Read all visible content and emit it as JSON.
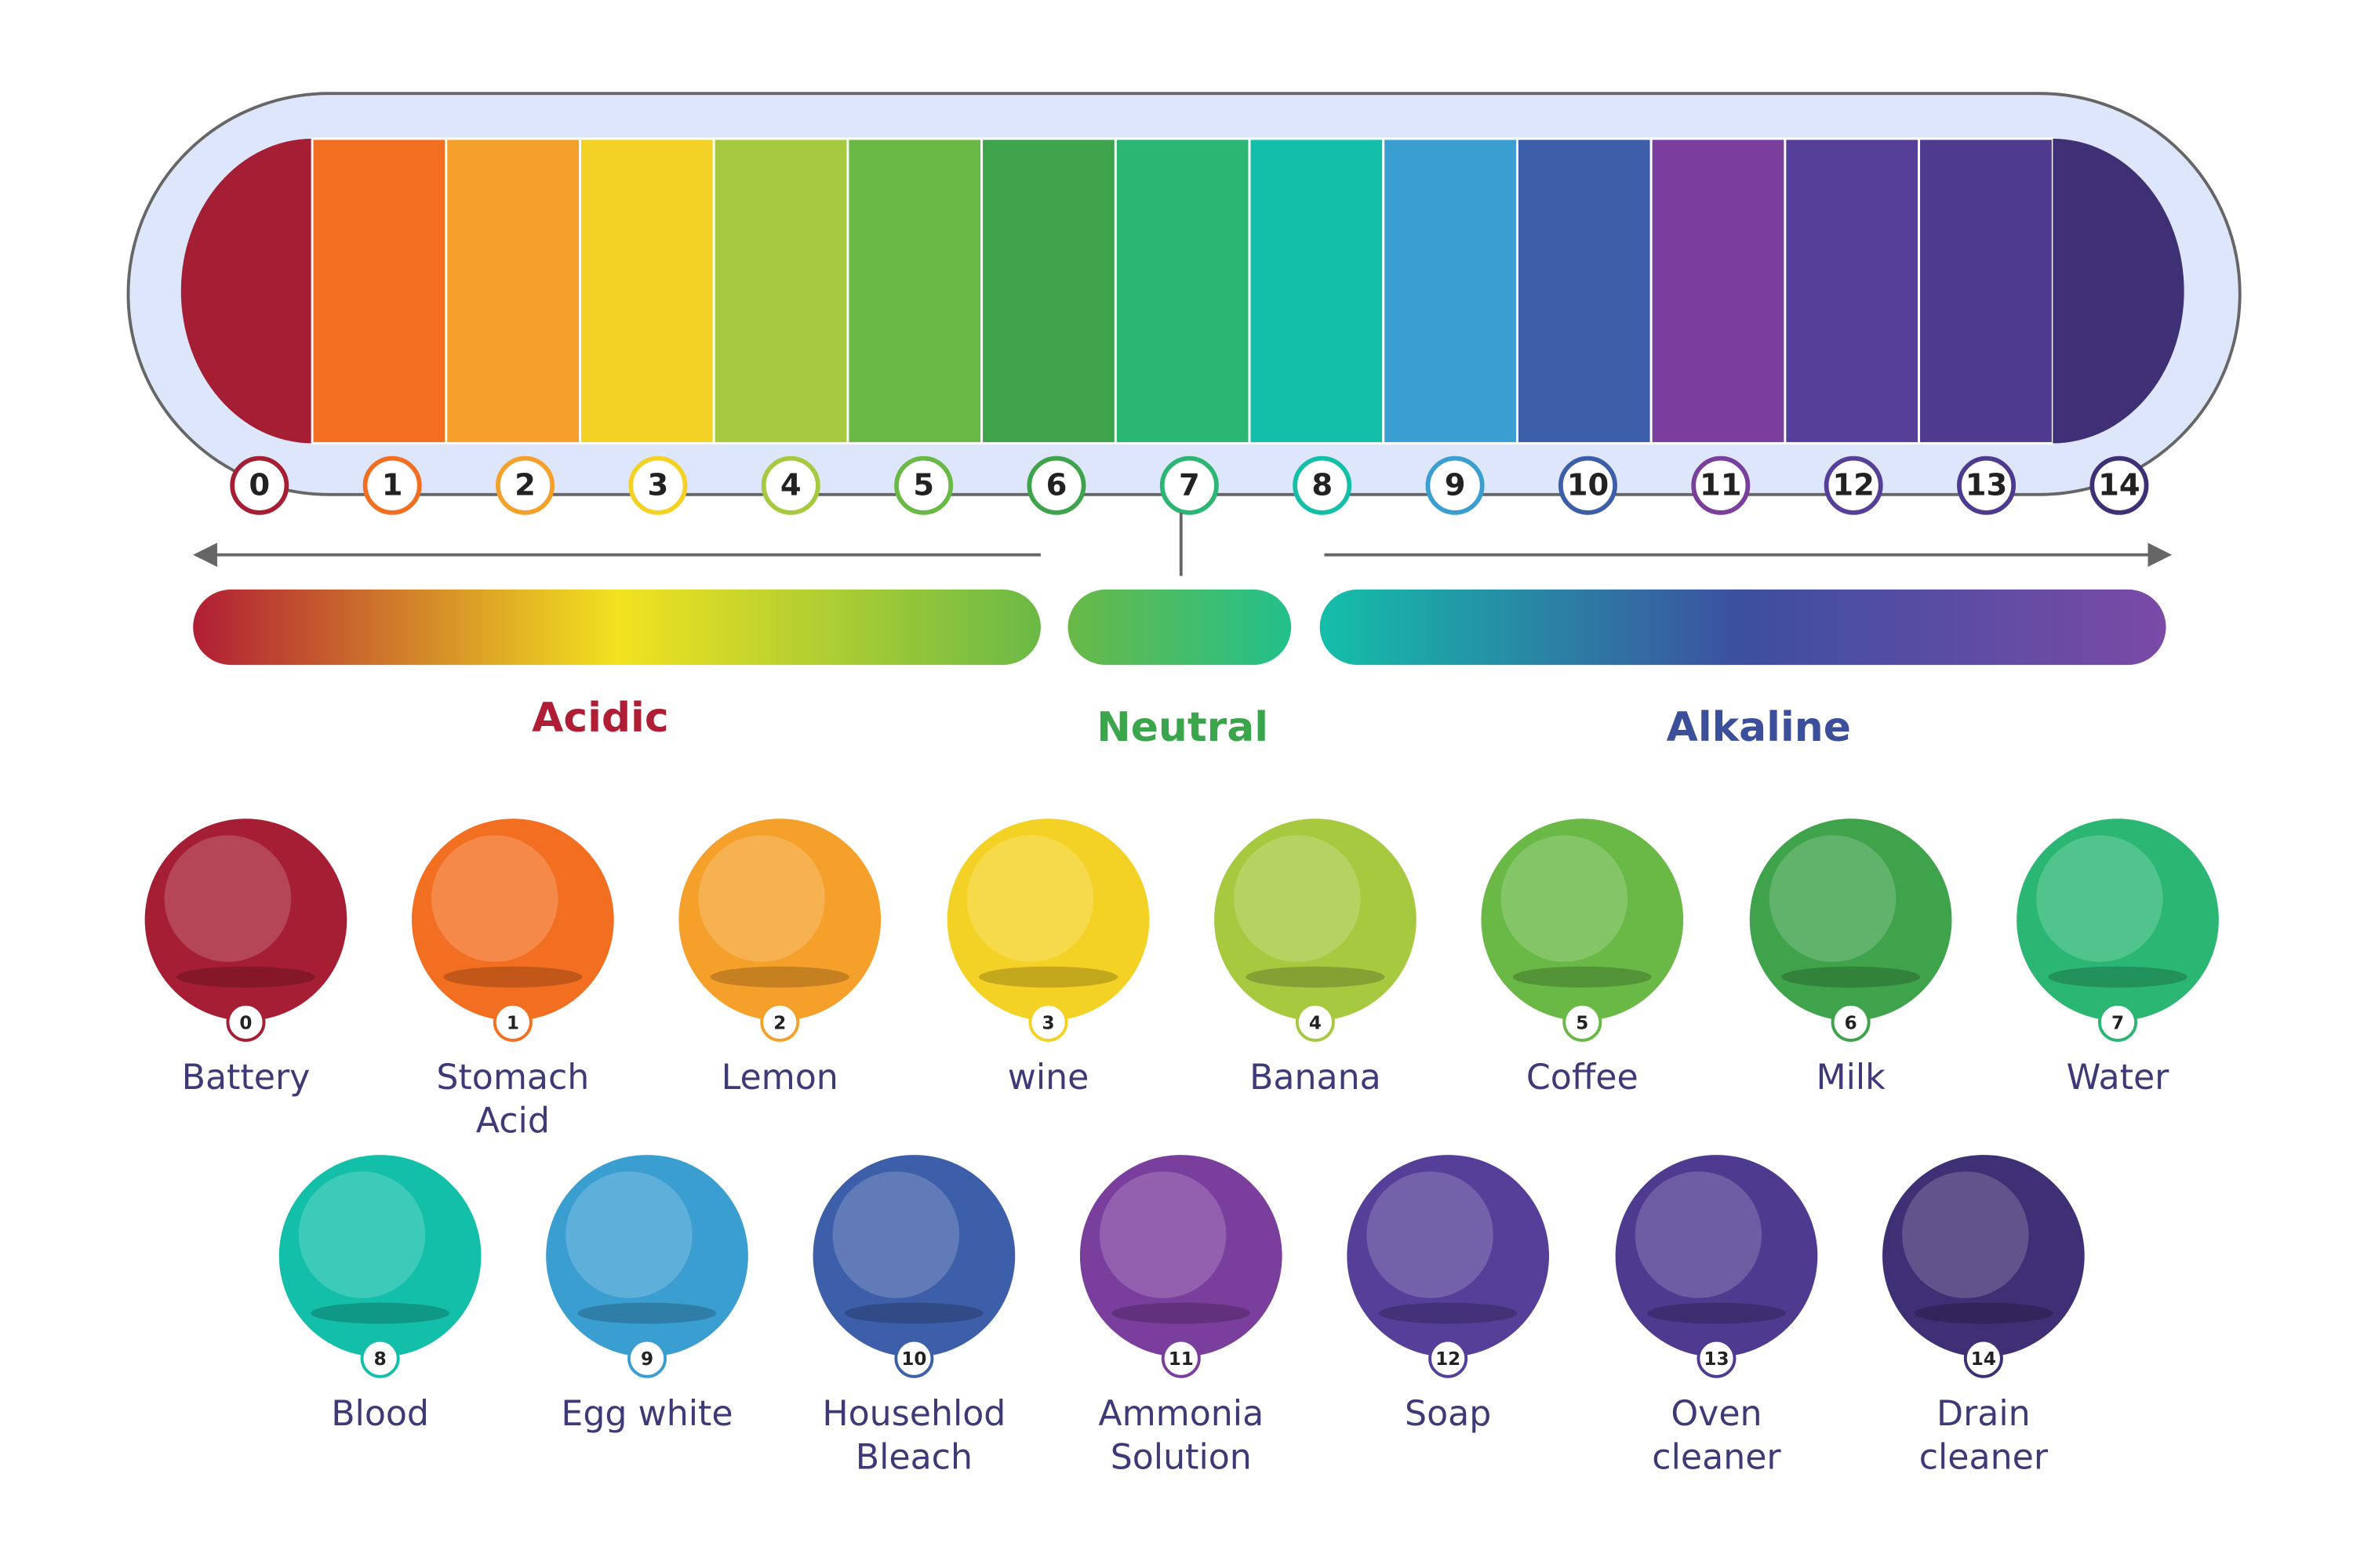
{
  "scale": {
    "levels": [
      {
        "ph": 0,
        "color": "#a51e33"
      },
      {
        "ph": 1,
        "color": "#f26f21"
      },
      {
        "ph": 2,
        "color": "#f5a02a"
      },
      {
        "ph": 3,
        "color": "#f4d225"
      },
      {
        "ph": 4,
        "color": "#a7c940"
      },
      {
        "ph": 5,
        "color": "#6ab946"
      },
      {
        "ph": 6,
        "color": "#3fa34b"
      },
      {
        "ph": 7,
        "color": "#2bb673"
      },
      {
        "ph": 8,
        "color": "#14bfa9"
      },
      {
        "ph": 9,
        "color": "#3b9ed1"
      },
      {
        "ph": 10,
        "color": "#3d5ea8"
      },
      {
        "ph": 11,
        "color": "#7a3e9d"
      },
      {
        "ph": 12,
        "color": "#553f98"
      },
      {
        "ph": 13,
        "color": "#4e3a8e"
      },
      {
        "ph": 14,
        "color": "#3f2f74"
      }
    ]
  },
  "ranges": [
    {
      "label": "Acidic",
      "color": "#b01e35"
    },
    {
      "label": "Neutral",
      "color": "#3aa54a"
    },
    {
      "label": "Alkaline",
      "color": "#3b4f9a"
    }
  ],
  "items": [
    {
      "name": [
        "Battery"
      ],
      "ph": 0
    },
    {
      "name": [
        "Stomach",
        "Acid"
      ],
      "ph": 1
    },
    {
      "name": [
        "Lemon"
      ],
      "ph": 2
    },
    {
      "name": [
        "wine"
      ],
      "ph": 3
    },
    {
      "name": [
        "Banana"
      ],
      "ph": 4
    },
    {
      "name": [
        "Coffee"
      ],
      "ph": 5
    },
    {
      "name": [
        "Milk"
      ],
      "ph": 6
    },
    {
      "name": [
        "Water"
      ],
      "ph": 7
    },
    {
      "name": [
        "Blood"
      ],
      "ph": 8
    },
    {
      "name": [
        "Egg white"
      ],
      "ph": 9
    },
    {
      "name": [
        "Househlod",
        "Bleach"
      ],
      "ph": 10
    },
    {
      "name": [
        "Ammonia",
        "Solution"
      ],
      "ph": 11
    },
    {
      "name": [
        "Soap"
      ],
      "ph": 12
    },
    {
      "name": [
        "Oven",
        "cleaner"
      ],
      "ph": 13
    },
    {
      "name": [
        "Drain",
        "cleaner"
      ],
      "ph": 14
    }
  ]
}
